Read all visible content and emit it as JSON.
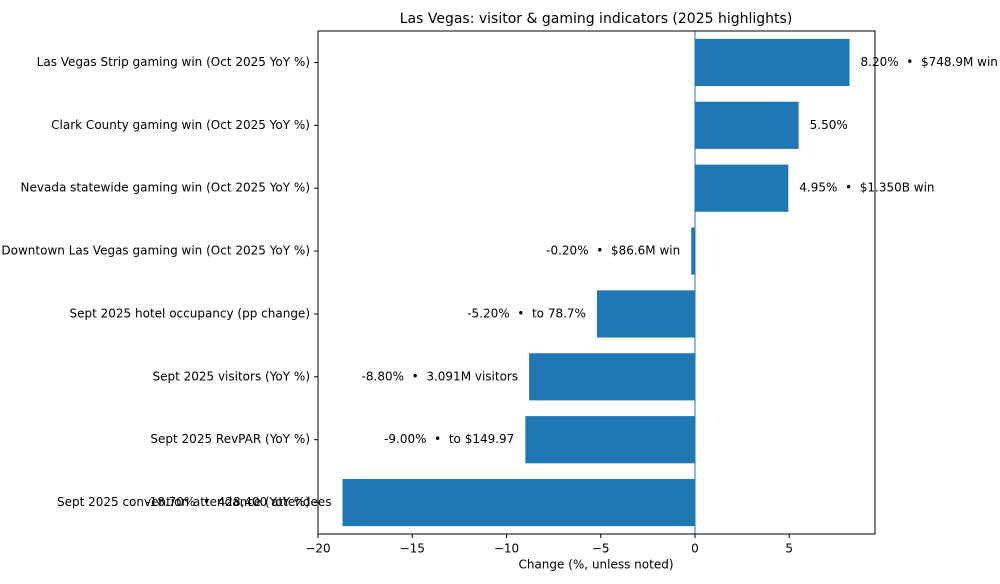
{
  "chart_data": {
    "type": "barh",
    "title": "Las Vegas: visitor & gaming indicators (2025 highlights)",
    "x_label": "Change (%, unless noted)",
    "categories": [
      "Las Vegas Strip gaming win (Oct 2025 YoY %)",
      "Clark County gaming win (Oct 2025 YoY %)",
      "Nevada statewide gaming win (Oct 2025 YoY %)",
      "Downtown Las Vegas gaming win (Oct 2025 YoY %)",
      "Sept 2025 hotel occupancy (pp change)",
      "Sept 2025 visitors (YoY %)",
      "Sept 2025 RevPAR (YoY %)",
      "Sept 2025 convention attendance (YoY %)"
    ],
    "values": [
      8.2,
      5.5,
      4.95,
      -0.2,
      -5.2,
      -8.8,
      -9.0,
      -18.7
    ],
    "value_labels": [
      "8.20%  •  $748.9M win",
      "5.50%",
      "4.95%  •  $1.350B win",
      "-0.20%  •  $86.6M win",
      "-5.20%  •  to 78.7%",
      "-8.80%  •  3.091M visitors",
      "-9.00%  •  to $149.97",
      "-18.70%  •  428,400 attendees"
    ],
    "color": "#1f77b4",
    "xlim": [
      -20,
      9.55
    ],
    "xticks": [
      {
        "value": -20,
        "label": "−20"
      },
      {
        "value": -15,
        "label": "−15"
      },
      {
        "value": -10,
        "label": "−10"
      },
      {
        "value": -5,
        "label": "−5"
      },
      0,
      5
    ],
    "zero_line": true
  }
}
